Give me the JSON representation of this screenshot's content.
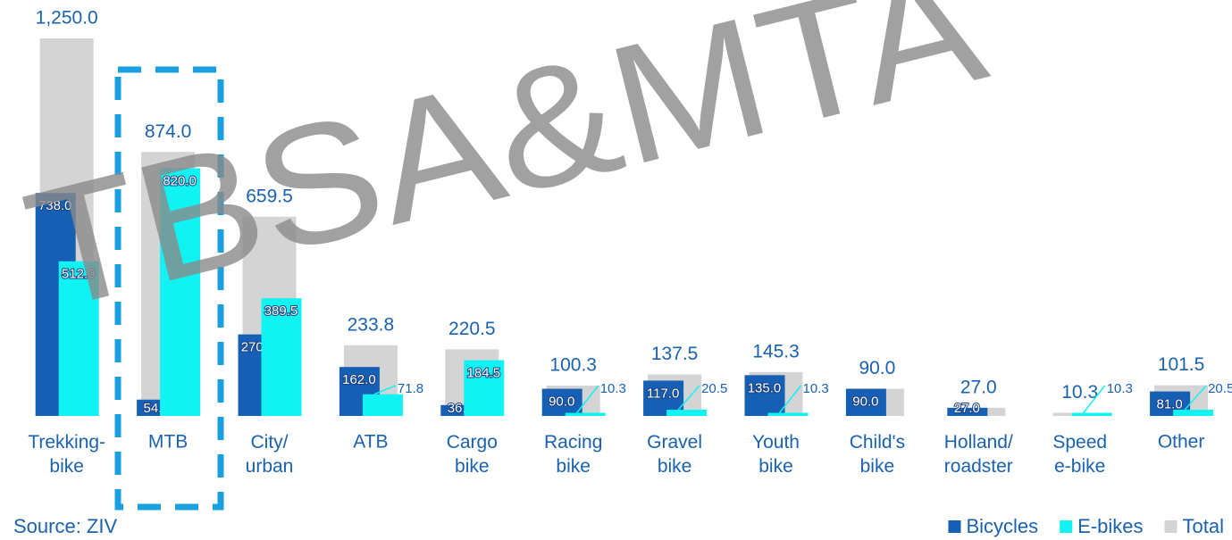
{
  "chart_data": {
    "type": "bar",
    "categories": [
      "Trekking-\nbike",
      "MTB",
      "City/\nurban",
      "ATB",
      "Cargo\nbike",
      "Racing\nbike",
      "Gravel\nbike",
      "Youth\nbike",
      "Child's\nbike",
      "Holland/\nroadster",
      "Speed\ne-bike",
      "Other"
    ],
    "series": [
      {
        "name": "Bicycles",
        "color": "#1560b4",
        "values": [
          738,
          54,
          270,
          162,
          36,
          90,
          117,
          135,
          90,
          27,
          null,
          81
        ],
        "value_labels": [
          "738.0",
          "54.0",
          "270.0",
          "162.0",
          "36.0",
          "90.0",
          "117.0",
          "135.0",
          "90.0",
          "27.0",
          null,
          "81.0"
        ]
      },
      {
        "name": "E-bikes",
        "color": "#11f2f2",
        "values": [
          512,
          820,
          389.5,
          71.8,
          184.5,
          10.3,
          20.5,
          10.3,
          null,
          null,
          10.3,
          20.5
        ],
        "value_labels": [
          "512.0",
          "820.0",
          "389.5",
          "71.8",
          "184.5",
          "10.3",
          "20.5",
          "10.3",
          null,
          null,
          "10.3",
          "20.5"
        ]
      },
      {
        "name": "Total",
        "color": "#d4d4d4",
        "values": [
          1250,
          874,
          659.5,
          233.8,
          220.5,
          100.3,
          137.5,
          145.3,
          90,
          27,
          10.3,
          101.5
        ],
        "value_labels": [
          "1,250.0",
          "874.0",
          "659.5",
          "233.8",
          "220.5",
          "100.3",
          "137.5",
          "145.3",
          "90.0",
          "27.0",
          "10.3",
          "101.5"
        ]
      }
    ],
    "ylim": [
      0,
      1250
    ],
    "legend": "bottom-right",
    "source": "Source: ZIV",
    "watermark": "TBSA&MTA"
  }
}
